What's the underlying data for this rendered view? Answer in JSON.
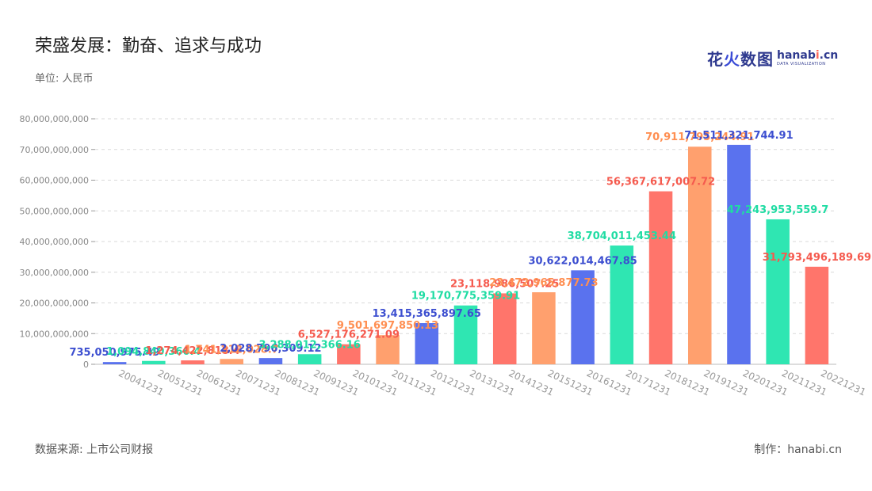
{
  "header": {
    "title": "荣盛发展：勤奋、追求与成功",
    "unit": "单位: 人民币"
  },
  "logo": {
    "cn_part1": "花",
    "cn_part2": "火",
    "cn_part3": "数图",
    "en_main_a": "hanab",
    "en_main_dot": "i",
    "en_main_b": ".cn",
    "en_sub": "DATA VISUALIZATION"
  },
  "footer": {
    "source": "数据来源: 上市公司财报",
    "maker": "制作：hanabi.cn"
  },
  "colors": {
    "blue": "#5a72ee",
    "green": "#2fe6b2",
    "red": "#ff756b",
    "orange": "#ffa06e",
    "label_blue": "#3d4fd0",
    "label_green": "#1fdca3",
    "label_red": "#f55a4e",
    "label_orange": "#ff8f52"
  },
  "chart_data": {
    "type": "bar",
    "title": "荣盛发展：勤奋、追求与成功",
    "ylim": [
      0,
      80000000000
    ],
    "yticks": [
      "0",
      "10,000,000,000",
      "20,000,000,000",
      "30,000,000,000",
      "40,000,000,000",
      "50,000,000,000",
      "60,000,000,000",
      "70,000,000,000",
      "80,000,000,000"
    ],
    "grid": true,
    "categories": [
      "20041231",
      "20051231",
      "20061231",
      "20071231",
      "20081231",
      "20091231",
      "20101231",
      "20111231",
      "20121231",
      "20131231",
      "20141231",
      "20151231",
      "20161231",
      "20171231",
      "20181231",
      "20191231",
      "20201231",
      "20211231",
      "20221231"
    ],
    "values": [
      735050975.49,
      1094840366.4,
      1274422818.4,
      1741212028.7,
      2028796309.12,
      3288012366.16,
      6527176271.09,
      9501697850.13,
      13415365897.65,
      19170775359.91,
      23118986507.25,
      23472965877.73,
      30622014467.85,
      38704011453.44,
      56367617007.72,
      70911795244.91,
      71511321744.91,
      47243953559.7,
      31793496189.69
    ],
    "labels": [
      "735,050,975.49",
      "1,094,840,366.4",
      "1,274,422,818.4",
      "1,741,212,028.7",
      "2,028,796,309.12",
      "3,288,012,366.16",
      "6,527,176,271.09",
      "9,501,697,850.13",
      "13,415,365,897.65",
      "19,170,775,359.91",
      "23,118,986,507.25",
      "23,472,965,877.73",
      "30,622,014,467.85",
      "38,704,011,453.44",
      "56,367,617,007.72",
      "70,911,795,244.91",
      "71,511,321,744.91",
      "47,243,953,559.7",
      "31,793,496,189.69"
    ],
    "colors": [
      "blue",
      "green",
      "red",
      "orange",
      "blue",
      "green",
      "red",
      "orange",
      "blue",
      "green",
      "red",
      "orange",
      "blue",
      "green",
      "red",
      "orange",
      "blue",
      "green",
      "red"
    ]
  }
}
